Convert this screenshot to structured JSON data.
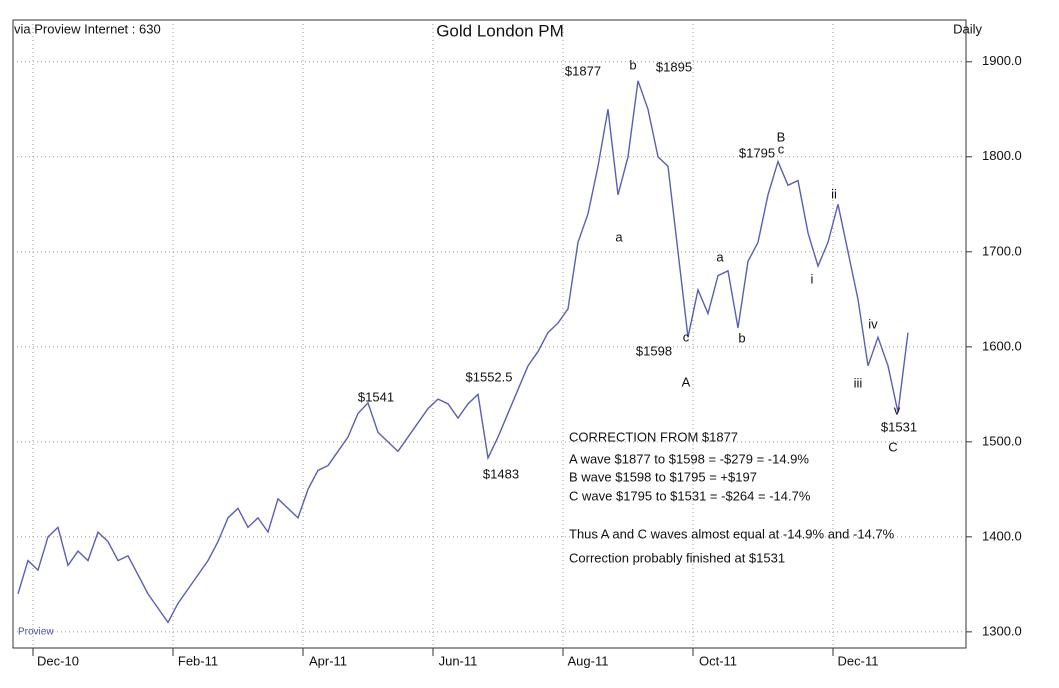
{
  "chart_data": {
    "type": "line",
    "title": "Gold London PM",
    "source": "via Proview Internet : 630",
    "period": "Daily",
    "watermark": "Proview",
    "categories": [
      null,
      null,
      null,
      null,
      "Dec-10",
      null,
      null,
      null,
      null,
      null,
      null,
      null,
      null,
      null,
      null,
      null,
      null,
      null,
      "Feb-11",
      null,
      null,
      null,
      null,
      null,
      null,
      null,
      null,
      null,
      null,
      null,
      null,
      "Apr-11",
      null,
      null,
      null,
      null,
      null,
      null,
      null,
      null,
      null,
      null,
      null,
      null,
      "Jun-11",
      null,
      null,
      null,
      null,
      null,
      null,
      null,
      null,
      null,
      null,
      null,
      null,
      "Aug-11",
      null,
      null,
      null,
      null,
      null,
      null,
      null,
      null,
      null,
      null,
      null,
      null,
      "Oct-11",
      null,
      null,
      null,
      null,
      null,
      null,
      null,
      null,
      null,
      null,
      null,
      null,
      null,
      "Dec-11",
      null,
      null,
      null,
      null,
      null
    ],
    "series": [
      {
        "name": "Gold London PM",
        "color": "#5a5fb5",
        "values": [
          1340,
          1375,
          1365,
          1400,
          1410,
          1370,
          1385,
          1375,
          1405,
          1395,
          1375,
          1380,
          1360,
          1340,
          1325,
          1310,
          1330,
          1345,
          1360,
          1375,
          1395,
          1420,
          1430,
          1410,
          1420,
          1405,
          1440,
          1430,
          1420,
          1450,
          1470,
          1475,
          1490,
          1505,
          1530,
          1541,
          1510,
          1500,
          1490,
          1505,
          1520,
          1535,
          1545,
          1540,
          1525,
          1540,
          1550,
          1483,
          1505,
          1530,
          1555,
          1580,
          1595,
          1615,
          1625,
          1640,
          1710,
          1740,
          1790,
          1850,
          1760,
          1800,
          1880,
          1850,
          1800,
          1790,
          1700,
          1610,
          1660,
          1635,
          1675,
          1680,
          1620,
          1690,
          1710,
          1760,
          1795,
          1770,
          1775,
          1720,
          1685,
          1710,
          1750,
          1700,
          1650,
          1580,
          1610,
          1580,
          1531,
          1615
        ]
      }
    ],
    "ylim": [
      1283,
      1944
    ],
    "yticks": [
      {
        "value": 1300,
        "label": "1300.0"
      },
      {
        "value": 1400,
        "label": "1400.0"
      },
      {
        "value": 1500,
        "label": "1500.0"
      },
      {
        "value": 1600,
        "label": "1600.0"
      },
      {
        "value": 1700,
        "label": "1700.0"
      },
      {
        "value": 1800,
        "label": "1800.0"
      },
      {
        "value": 1900,
        "label": "1900.0"
      }
    ],
    "grid": true,
    "annotations": [
      "$1877",
      "b",
      "$1895",
      "a",
      "$1795",
      "c",
      "B",
      "$1598",
      "c",
      "A",
      "a",
      "b",
      "ii",
      "i",
      "iv",
      "iii",
      "v",
      "$1531",
      "C",
      "$1541",
      "$1552.5",
      "$1483"
    ],
    "notes": [
      "CORRECTION FROM $1877",
      "A wave  $1877 to $1598 = -$279 = -14.9%",
      "B wave $1598 to $1795 = +$197",
      "C wave  $1795 to $1531 = -$264 = -14.7%",
      "Thus A and C waves almost equal at -14.9% and -14.7%",
      "Correction probably finished at $1531"
    ]
  }
}
